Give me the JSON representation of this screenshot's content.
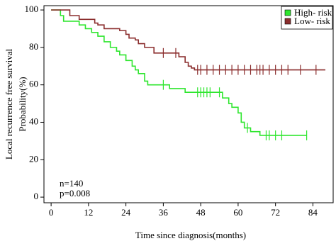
{
  "chart_data": {
    "type": "kaplan-meier",
    "xlabel": "Time since diagnosis(months)",
    "ylabel": [
      "Local recurrence free survival",
      "Probability(%)"
    ],
    "annotations": [
      "n=140",
      "p=0.008"
    ],
    "xlim": [
      -2.3,
      90.5
    ],
    "ylim": [
      -3,
      102.3
    ],
    "xticks": [
      0,
      12,
      24,
      36,
      48,
      60,
      72,
      84
    ],
    "yticks": [
      0,
      20,
      40,
      60,
      80,
      100
    ],
    "legend": "top-right",
    "series": [
      {
        "name": "High- risk",
        "color": "#2ee62e",
        "x": [
          0,
          3,
          4,
          9,
          11,
          13,
          15,
          17,
          19,
          21,
          22,
          24,
          26,
          27,
          28,
          30,
          31,
          38,
          43,
          55,
          57,
          58,
          60,
          61,
          62,
          64,
          67,
          82
        ],
        "values": [
          100,
          97,
          94,
          92,
          90,
          88,
          86,
          83,
          80,
          78,
          76,
          73,
          70,
          68,
          66,
          62,
          60,
          58,
          56,
          53,
          50,
          48,
          45,
          40,
          37,
          35,
          33,
          33
        ],
        "censored": {
          "x": [
            36,
            47,
            48,
            49,
            50,
            51,
            54,
            63,
            69,
            70,
            72,
            74,
            82
          ],
          "values": [
            60,
            56,
            56,
            56,
            56,
            56,
            56,
            37,
            33,
            33,
            33,
            33,
            33
          ]
        }
      },
      {
        "name": "Low- risk",
        "color": "#8b2e2e",
        "x": [
          0,
          6,
          9,
          14,
          15,
          17,
          22,
          24,
          25,
          27,
          28,
          30,
          33,
          41,
          43,
          44,
          45,
          46,
          88
        ],
        "values": [
          100,
          97,
          95,
          93,
          92,
          90,
          89,
          87,
          85,
          84,
          82,
          80,
          77,
          75,
          72,
          70,
          69,
          68,
          68
        ],
        "censored": {
          "x": [
            36,
            40,
            47,
            48,
            50,
            52,
            54,
            56,
            58,
            60,
            62,
            64,
            66,
            67,
            68,
            70,
            72,
            74,
            76,
            80,
            85
          ],
          "values": [
            77,
            77,
            68,
            68,
            68,
            68,
            68,
            68,
            68,
            68,
            68,
            68,
            68,
            68,
            68,
            68,
            68,
            68,
            68,
            68,
            68
          ]
        }
      }
    ]
  }
}
